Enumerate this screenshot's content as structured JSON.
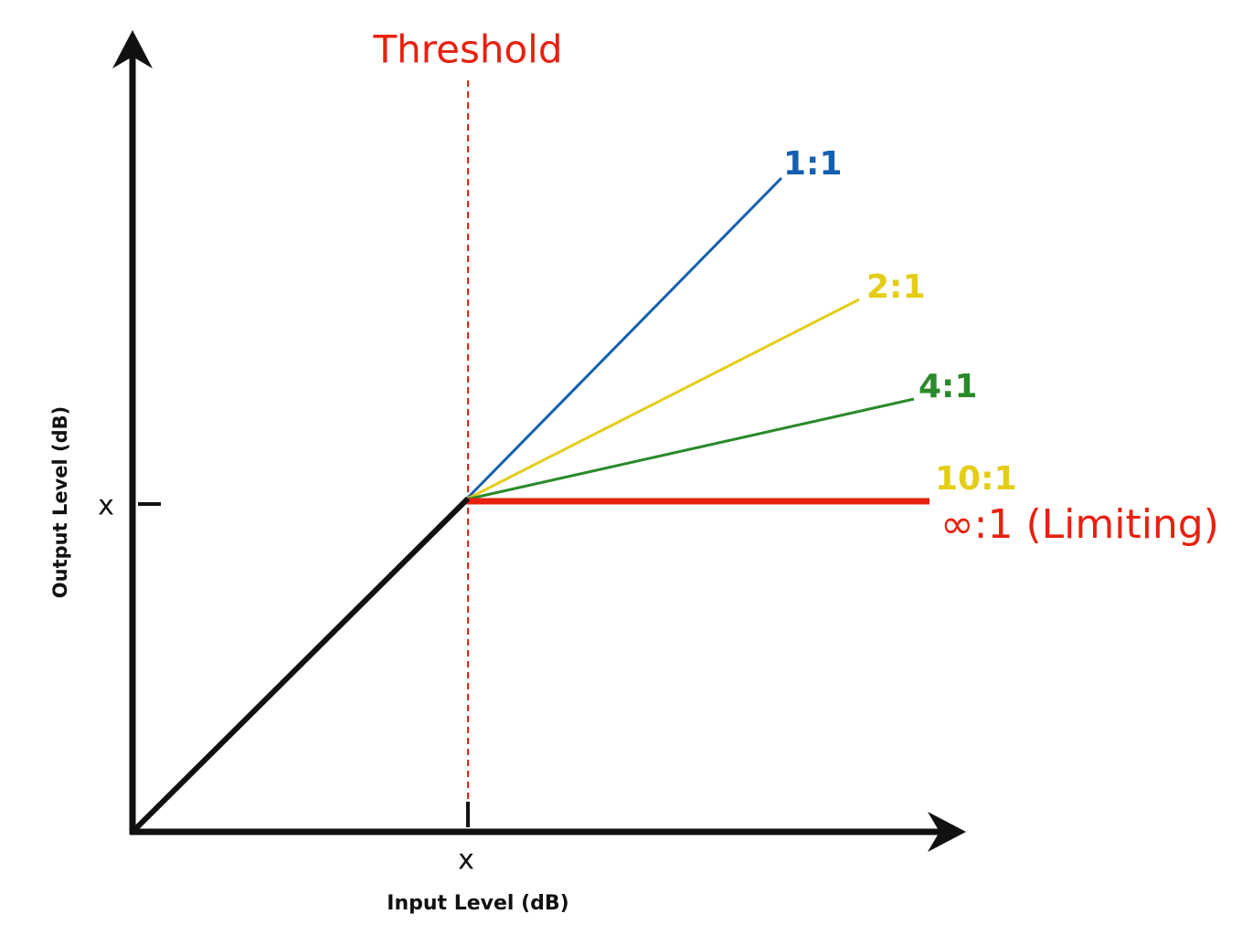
{
  "threshold_label": "Threshold",
  "x_axis_label": "Input Level (dB)",
  "y_axis_label": "Output Level (dB)",
  "x_tick_label": "x",
  "y_tick_label": "x",
  "ratios": [
    {
      "label": "1:1",
      "color": "#1560b0"
    },
    {
      "label": "2:1",
      "color": "#e4cd17"
    },
    {
      "label": "4:1",
      "color": "#2a8a2a"
    },
    {
      "label": "10:1",
      "color": "#e4cd17"
    },
    {
      "label": "∞:1 (Limiting)",
      "color": "#e8200f"
    }
  ]
}
